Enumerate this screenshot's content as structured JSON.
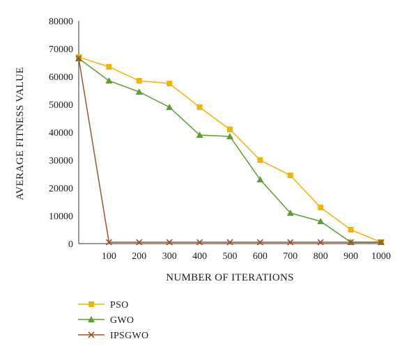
{
  "chart_data": {
    "type": "line",
    "title": "",
    "xlabel": "NUMBER OF ITERATIONS",
    "ylabel": "AVERAGE FITNESS VALUE",
    "x": [
      0,
      100,
      200,
      300,
      400,
      500,
      600,
      700,
      800,
      900,
      1000
    ],
    "x_tick_labels": [
      "100",
      "200",
      "300",
      "400",
      "500",
      "600",
      "700",
      "800",
      "900",
      "1000"
    ],
    "y_tick_labels": [
      "0",
      "10000",
      "20000",
      "30000",
      "40000",
      "50000",
      "60000",
      "70000",
      "80000"
    ],
    "ylim": [
      0,
      80000
    ],
    "grid": false,
    "legend_position": "bottom-left",
    "series": [
      {
        "name": "PSO",
        "color": "#f2b400",
        "marker": "square",
        "values": [
          67000,
          63500,
          58500,
          57500,
          49000,
          41000,
          30000,
          24500,
          13000,
          5000,
          500
        ]
      },
      {
        "name": "GWO",
        "color": "#5aa02c",
        "marker": "triangle",
        "values": [
          66500,
          58500,
          54500,
          49000,
          39000,
          38500,
          23000,
          11000,
          8000,
          500,
          500
        ]
      },
      {
        "name": "IPSGWO",
        "color": "#a0522d",
        "marker": "x",
        "values": [
          66500,
          500,
          500,
          500,
          500,
          500,
          500,
          500,
          500,
          500,
          500
        ]
      }
    ]
  }
}
